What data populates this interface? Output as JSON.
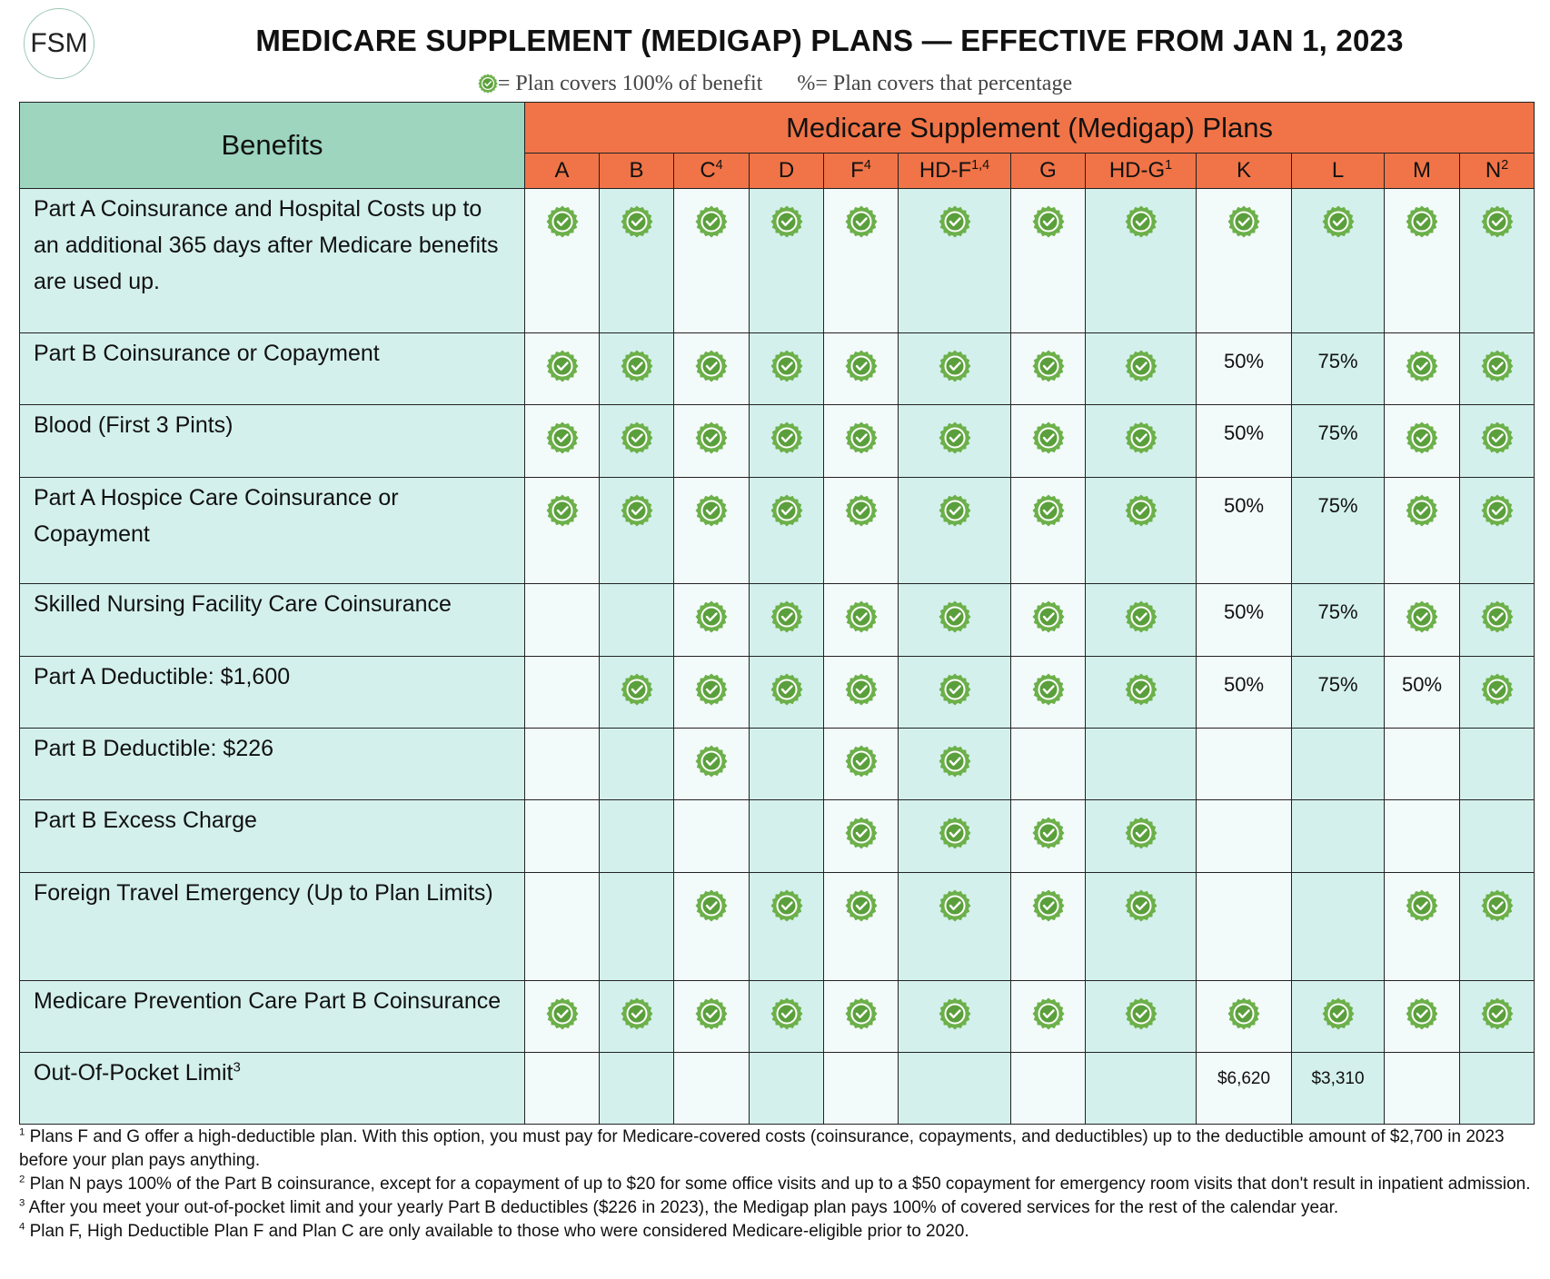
{
  "header": {
    "logo": "FSM",
    "title": "MEDICARE SUPPLEMENT (MEDIGAP) PLANS — EFFECTIVE FROM JAN 1, 2023",
    "legend": [
      "= Plan covers 100% of benefit",
      "%= Plan covers that percentage"
    ]
  },
  "table": {
    "benefits_header": "Benefits",
    "plans_header": "Medicare Supplement (Medigap) Plans",
    "plans": [
      {
        "label": "A"
      },
      {
        "label": "B"
      },
      {
        "label": "C",
        "sup": "4"
      },
      {
        "label": "D"
      },
      {
        "label": "F",
        "sup": "4"
      },
      {
        "label": "HD-F",
        "sup": "1,4"
      },
      {
        "label": "G"
      },
      {
        "label": "HD-G",
        "sup": "1"
      },
      {
        "label": "K"
      },
      {
        "label": "L"
      },
      {
        "label": "M"
      },
      {
        "label": "N",
        "sup": "2"
      }
    ],
    "rows": [
      {
        "benefit": "Part A Coinsurance and Hospital Costs up to an additional 365 days after Medicare benefits are used up.",
        "cells": [
          true,
          true,
          true,
          true,
          true,
          true,
          true,
          true,
          true,
          true,
          true,
          true
        ]
      },
      {
        "benefit": "Part B Coinsurance or Copayment",
        "cells": [
          true,
          true,
          true,
          true,
          true,
          true,
          true,
          true,
          "50%",
          "75%",
          true,
          true
        ]
      },
      {
        "benefit": "Blood (First 3 Pints)",
        "cells": [
          true,
          true,
          true,
          true,
          true,
          true,
          true,
          true,
          "50%",
          "75%",
          true,
          true
        ]
      },
      {
        "benefit": "Part A Hospice Care Coinsurance or Copayment",
        "cells": [
          true,
          true,
          true,
          true,
          true,
          true,
          true,
          true,
          "50%",
          "75%",
          true,
          true
        ]
      },
      {
        "benefit": "Skilled Nursing Facility Care Coinsurance",
        "cells": [
          null,
          null,
          true,
          true,
          true,
          true,
          true,
          true,
          "50%",
          "75%",
          true,
          true
        ]
      },
      {
        "benefit": "Part A Deductible: $1,600",
        "cells": [
          null,
          true,
          true,
          true,
          true,
          true,
          true,
          true,
          "50%",
          "75%",
          "50%",
          true
        ]
      },
      {
        "benefit": "Part B Deductible: $226",
        "cells": [
          null,
          null,
          true,
          null,
          true,
          true,
          null,
          null,
          null,
          null,
          null,
          null
        ]
      },
      {
        "benefit": "Part B Excess Charge",
        "cells": [
          null,
          null,
          null,
          null,
          true,
          true,
          true,
          true,
          null,
          null,
          null,
          null
        ]
      },
      {
        "benefit": "Foreign Travel Emergency (Up to Plan Limits)",
        "cells": [
          null,
          null,
          true,
          true,
          true,
          true,
          true,
          true,
          null,
          null,
          true,
          true
        ]
      },
      {
        "benefit": "Medicare Prevention Care Part B Coinsurance",
        "cells": [
          true,
          true,
          true,
          true,
          true,
          true,
          true,
          true,
          true,
          true,
          true,
          true
        ]
      },
      {
        "benefit": "Out-Of-Pocket Limit",
        "benefit_sup": "3",
        "cells": [
          null,
          null,
          null,
          null,
          null,
          null,
          null,
          null,
          "$6,620",
          "$3,310",
          null,
          null
        ]
      }
    ]
  },
  "footnotes": [
    {
      "marker": "1",
      "text": "Plans F and G offer a high-deductible plan. With this option, you must pay for Medicare-covered costs (coinsurance, copayments, and deductibles) up to the deductible amount of $2,700 in 2023 before your plan pays anything."
    },
    {
      "marker": "2",
      "text": "Plan N pays 100% of the Part B coinsurance, except for a copayment of up to $20 for some office visits and up to a $50 copayment for emergency room visits that don't result in inpatient admission."
    },
    {
      "marker": "3",
      "text": "After you meet your out-of-pocket limit and your yearly Part B deductibles ($226 in 2023), the Medigap plan pays 100% of covered services for the rest of the calendar year."
    },
    {
      "marker": "4",
      "text": "Plan F, High Deductible Plan F and Plan C are only available to those who were considered Medicare-eligible prior to 2020."
    }
  ]
}
